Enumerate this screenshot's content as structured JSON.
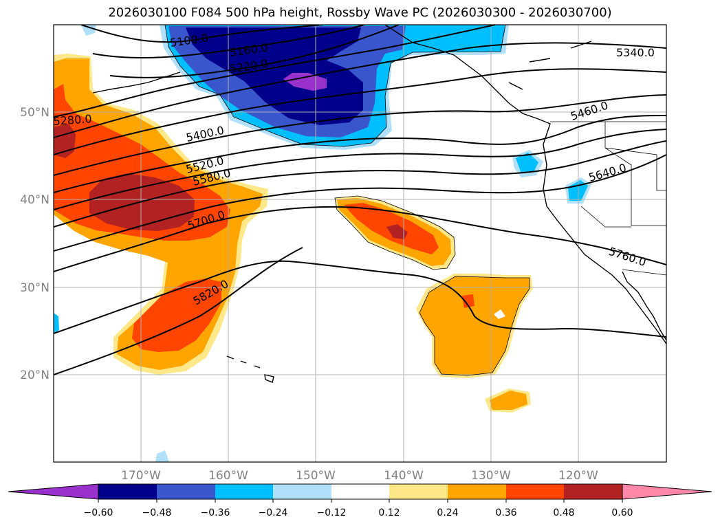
{
  "title": "2026030100 F084 500 hPa height, Rossby Wave PC (2026030300 - 2026030700)",
  "contour_labels": [
    "5100.0",
    "5160.0",
    "5220.0",
    "5280.0",
    "5340.0",
    "5400.0",
    "5460.0",
    "5520.0",
    "5580.0",
    "5640.0",
    "5700.0",
    "5760.0",
    "5820.0"
  ],
  "lat_ticks": [
    "50°N",
    "40°N",
    "30°N",
    "20°N"
  ],
  "lon_ticks": [
    "170°W",
    "160°W",
    "150°W",
    "140°W",
    "130°W",
    "120°W"
  ],
  "colorbar": {
    "tick_labels": [
      "−0.60",
      "−0.48",
      "−0.36",
      "−0.24",
      "−0.12",
      "0.12",
      "0.24",
      "0.36",
      "0.48",
      "0.60"
    ],
    "colors": [
      "#9932cc",
      "#00008b",
      "#3a56cc",
      "#00bfff",
      "#b0e0fa",
      "#ffffff",
      "#ffe88a",
      "#ffa500",
      "#ff4500",
      "#b22222",
      "#ff88aa"
    ]
  },
  "fill_colors": {
    "neg1": "#b0e0fa",
    "neg2": "#00bfff",
    "neg3": "#3a56cc",
    "neg4": "#00008b",
    "neg5": "#9932cc",
    "pos1": "#ffe88a",
    "pos2": "#ffa500",
    "pos3": "#ff4500",
    "pos4": "#b22222"
  }
}
